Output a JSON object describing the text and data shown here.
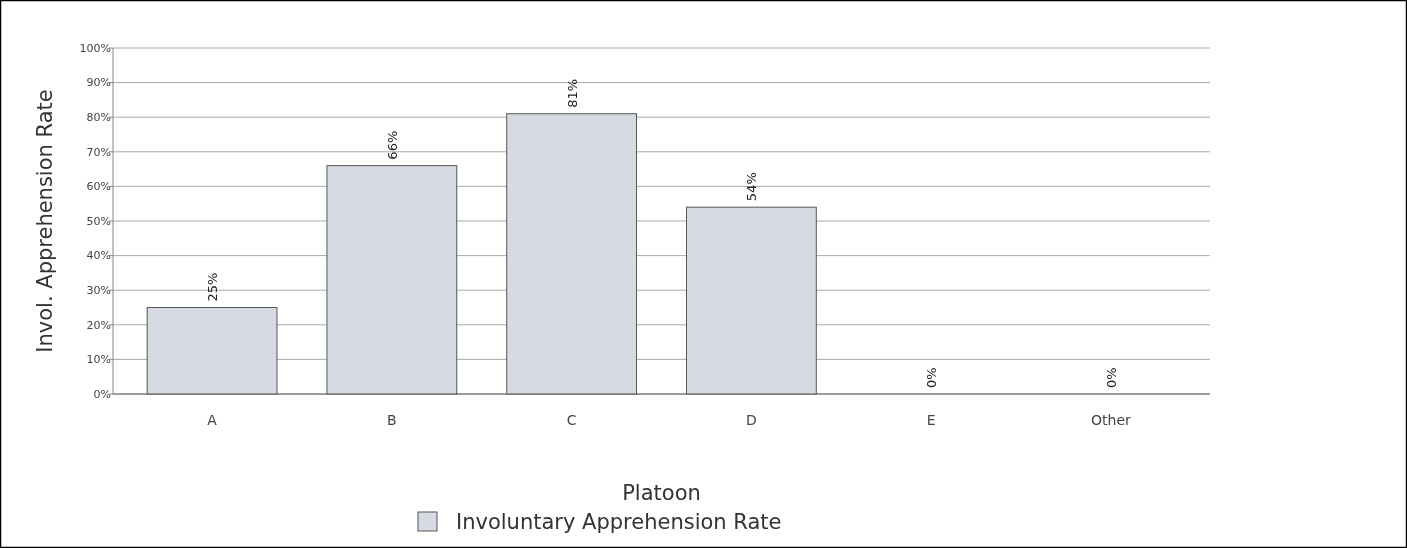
{
  "chart_data": {
    "type": "bar",
    "xlabel": "Platoon",
    "ylabel": "Invol. Apprehension Rate",
    "categories": [
      "A",
      "B",
      "C",
      "D",
      "E",
      "Other"
    ],
    "series": [
      {
        "name": "Involuntary Apprehension Rate",
        "color": "#d6dae3",
        "values": [
          25,
          66,
          81,
          54,
          0,
          0
        ],
        "value_labels": [
          "25%",
          "66%",
          "81%",
          "54%",
          "0%",
          "0%"
        ]
      }
    ],
    "ylim": [
      0,
      100
    ],
    "yticks": [
      {
        "value": 0,
        "label": "0%"
      },
      {
        "value": 10,
        "label": "10%"
      },
      {
        "value": 20,
        "label": "20%"
      },
      {
        "value": 30,
        "label": "30%"
      },
      {
        "value": 40,
        "label": "40%"
      },
      {
        "value": 50,
        "label": "50%"
      },
      {
        "value": 60,
        "label": "60%"
      },
      {
        "value": 70,
        "label": "70%"
      },
      {
        "value": 80,
        "label": "80%"
      },
      {
        "value": 90,
        "label": "90%"
      },
      {
        "value": 100,
        "label": "100%"
      }
    ],
    "grid": "y",
    "legend": "bottom"
  }
}
